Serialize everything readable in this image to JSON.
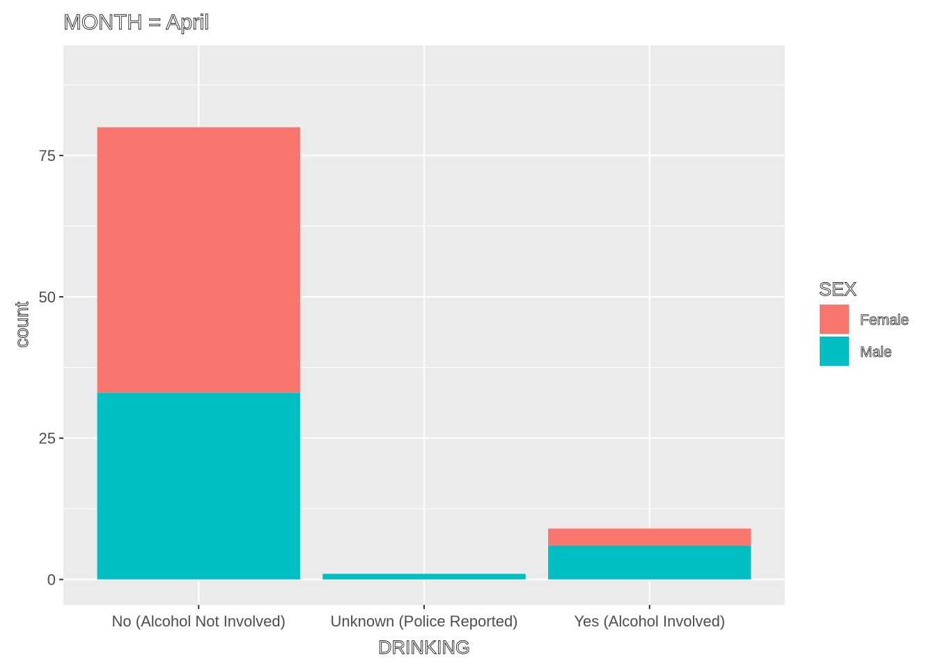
{
  "chart_data": {
    "type": "bar",
    "stacked": true,
    "title": "MONTH = April",
    "xlabel": "DRINKING",
    "ylabel": "count",
    "categories": [
      "No (Alcohol Not Involved)",
      "Unknown (Police Reported)",
      "Yes (Alcohol Involved)"
    ],
    "series": [
      {
        "name": "Male",
        "values": [
          33,
          1,
          6
        ],
        "color": "#00BFC4"
      },
      {
        "name": "Female",
        "values": [
          47,
          0,
          3
        ],
        "color": "#F8766D"
      }
    ],
    "ylim": [
      -4.5,
      94.5
    ],
    "yticks": [
      0,
      25,
      50,
      75
    ],
    "grid": true,
    "panel_background": "#EBEBEB",
    "legend": {
      "title": "SEX",
      "position": "right",
      "items": [
        {
          "label": "Female",
          "color": "#F8766D"
        },
        {
          "label": "Male",
          "color": "#00BFC4"
        }
      ]
    }
  }
}
